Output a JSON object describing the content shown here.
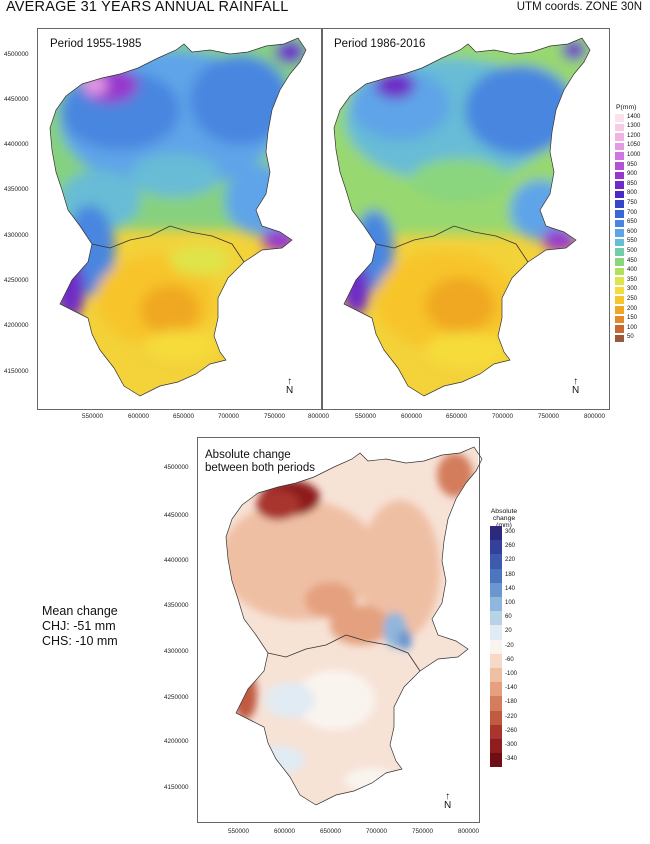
{
  "header": {
    "title": "AVERAGE 31 YEARS ANNUAL RAINFALL",
    "subtitle": "UTM coords. ZONE 30N"
  },
  "maps": {
    "period1": {
      "title": "Period 1955-1985"
    },
    "period2": {
      "title": "Period 1986-2016"
    },
    "change": {
      "title_line1": "Absolute change",
      "title_line2": "between both periods"
    }
  },
  "axes": {
    "top_y_ticks": [
      "4500000",
      "4450000",
      "4400000",
      "4350000",
      "4300000",
      "4250000",
      "4200000",
      "4150000"
    ],
    "top_x_ticks": [
      "550000",
      "600000",
      "650000",
      "700000",
      "750000",
      "800000"
    ],
    "bottom_y_ticks": [
      "4500000",
      "4450000",
      "4400000",
      "4350000",
      "4300000",
      "4250000",
      "4200000",
      "4150000"
    ],
    "bottom_x_ticks": [
      "550000",
      "600000",
      "650000",
      "700000",
      "750000",
      "800000"
    ]
  },
  "north_arrow": {
    "label": "N"
  },
  "precip_legend": {
    "title": "P(mm)",
    "entries": [
      {
        "label": "1400",
        "color": "#fbe3ec"
      },
      {
        "label": "1300",
        "color": "#f7cde6"
      },
      {
        "label": "1200",
        "color": "#f1b4e0"
      },
      {
        "label": "1050",
        "color": "#e49be3"
      },
      {
        "label": "1000",
        "color": "#cf76e0"
      },
      {
        "label": "950",
        "color": "#b452d6"
      },
      {
        "label": "900",
        "color": "#9738cc"
      },
      {
        "label": "850",
        "color": "#6e2bc7"
      },
      {
        "label": "800",
        "color": "#4a2ac4"
      },
      {
        "label": "750",
        "color": "#3646c9"
      },
      {
        "label": "700",
        "color": "#3968d6"
      },
      {
        "label": "650",
        "color": "#4a86e0"
      },
      {
        "label": "600",
        "color": "#5fa4e8"
      },
      {
        "label": "550",
        "color": "#67bcd6"
      },
      {
        "label": "500",
        "color": "#72cda8"
      },
      {
        "label": "450",
        "color": "#8ad67e"
      },
      {
        "label": "400",
        "color": "#b3e05c"
      },
      {
        "label": "350",
        "color": "#dfe44a"
      },
      {
        "label": "300",
        "color": "#f6dc3a"
      },
      {
        "label": "250",
        "color": "#f7c52c"
      },
      {
        "label": "200",
        "color": "#f0a824"
      },
      {
        "label": "150",
        "color": "#e38a2a"
      },
      {
        "label": "100",
        "color": "#c96b2e"
      },
      {
        "label": "50",
        "color": "#9a5a3c"
      }
    ]
  },
  "change_legend": {
    "title_line1": "Absolute",
    "title_line2": "change (mm)",
    "entries": [
      {
        "label": "300",
        "color": "#2c2a7e"
      },
      {
        "label": "260",
        "color": "#34409a"
      },
      {
        "label": "220",
        "color": "#3c5aae"
      },
      {
        "label": "180",
        "color": "#4b76bf"
      },
      {
        "label": "140",
        "color": "#6b97ce"
      },
      {
        "label": "100",
        "color": "#91b6dc"
      },
      {
        "label": "60",
        "color": "#b9d2e8"
      },
      {
        "label": "20",
        "color": "#e1ebf3"
      },
      {
        "label": "-20",
        "color": "#faf4ef"
      },
      {
        "label": "-60",
        "color": "#f6d9c7"
      },
      {
        "label": "-100",
        "color": "#efbfa4"
      },
      {
        "label": "-140",
        "color": "#e4a07f"
      },
      {
        "label": "-180",
        "color": "#d47d5d"
      },
      {
        "label": "-220",
        "color": "#c05a42"
      },
      {
        "label": "-260",
        "color": "#a8362d"
      },
      {
        "label": "-300",
        "color": "#8e1d1e"
      },
      {
        "label": "-340",
        "color": "#6f0e14"
      }
    ]
  },
  "mean_change": {
    "heading": "Mean change",
    "chj": "CHJ: -51 mm",
    "chs": "CHS:  -10 mm"
  }
}
